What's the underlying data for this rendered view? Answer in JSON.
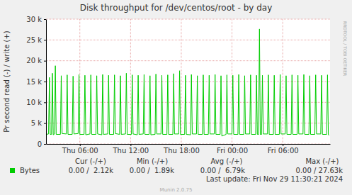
{
  "chart_data": {
    "type": "line",
    "title": "Disk throughput for /dev/centos/root - by day",
    "y_label": "Pr second read (-) / write (+)",
    "x": [
      2.0,
      2.3,
      2.4,
      2.5,
      2.65,
      2.75,
      2.85,
      3.0,
      3.1,
      3.2,
      3.7,
      3.8,
      3.9,
      4.4,
      4.5,
      4.6,
      5.1,
      5.2,
      5.3,
      5.8,
      5.9,
      6.0,
      6.5,
      6.6,
      6.7,
      7.2,
      7.3,
      7.4,
      7.9,
      8.0,
      8.1,
      8.6,
      8.7,
      8.8,
      9.3,
      9.4,
      9.5,
      10.0,
      10.1,
      10.2,
      10.7,
      10.8,
      10.9,
      11.4,
      11.5,
      11.6,
      12.1,
      12.2,
      12.3,
      12.8,
      12.9,
      13.0,
      13.5,
      13.6,
      13.7,
      14.2,
      14.3,
      14.4,
      14.9,
      15.0,
      15.1,
      15.6,
      15.7,
      15.8,
      16.3,
      16.4,
      16.5,
      17.0,
      17.1,
      17.2,
      17.7,
      17.8,
      17.9,
      18.4,
      18.5,
      18.6,
      19.1,
      19.2,
      19.3,
      19.8,
      19.9,
      20.0,
      20.5,
      20.6,
      20.7,
      21.2,
      21.3,
      21.4,
      21.9,
      22.0,
      22.1,
      22.6,
      22.7,
      22.8,
      23.3,
      23.4,
      23.5,
      24.0,
      24.1,
      24.2,
      24.7,
      24.8,
      24.9,
      25.4,
      25.5,
      25.6,
      26.1,
      26.2,
      26.3,
      26.8,
      26.9,
      27.0,
      27.15,
      27.25,
      27.35,
      27.5,
      27.6,
      27.7,
      28.2,
      28.3,
      28.4,
      28.9,
      29.0,
      29.1,
      29.6,
      29.7,
      29.8,
      30.3,
      30.4,
      30.5,
      31.0,
      31.1,
      31.2,
      31.7,
      31.8,
      31.9,
      32.4,
      32.5,
      32.6,
      33.1,
      33.2,
      33.3,
      33.8,
      33.9,
      34.0,
      34.5,
      34.6,
      34.7,
      35.2,
      35.3,
      35.4,
      35.5
    ],
    "series": [
      {
        "name": "Bytes",
        "color": "#00cc00",
        "values": [
          2300,
          2400,
          16000,
          2300,
          2300,
          17000,
          2200,
          2400,
          18800,
          2300,
          2300,
          16400,
          2500,
          2400,
          16600,
          2300,
          2300,
          16300,
          2400,
          2500,
          16700,
          2300,
          2300,
          16500,
          2200,
          2400,
          16600,
          2300,
          2300,
          16400,
          2400,
          2200,
          16700,
          2300,
          2400,
          16500,
          2300,
          2300,
          16600,
          2500,
          2300,
          16400,
          2300,
          2400,
          17000,
          2300,
          2300,
          16600,
          2400,
          2200,
          16500,
          2300,
          2400,
          16700,
          2300,
          2300,
          16400,
          2200,
          2300,
          16800,
          2400,
          2400,
          16500,
          2300,
          2300,
          16600,
          2300,
          2300,
          16900,
          2400,
          2400,
          17600,
          2300,
          2300,
          16500,
          2300,
          2200,
          16700,
          2400,
          2400,
          16400,
          2300,
          2300,
          16600,
          2300,
          2300,
          16500,
          2400,
          2400,
          16700,
          2300,
          2300,
          16400,
          1890,
          2300,
          16600,
          2400,
          2400,
          16500,
          2300,
          2300,
          16700,
          2300,
          2300,
          16400,
          2400,
          2400,
          16600,
          2300,
          2300,
          16500,
          2300,
          2300,
          27630,
          2300,
          2300,
          16500,
          2400,
          2400,
          16600,
          2300,
          2300,
          16500,
          2300,
          2300,
          16700,
          2400,
          2400,
          16400,
          2300,
          2300,
          16600,
          2300,
          2300,
          16500,
          2400,
          2400,
          16700,
          2300,
          2300,
          16400,
          2300,
          2300,
          16600,
          2400,
          2400,
          16500,
          2300,
          2300,
          16600,
          2200,
          2120
        ]
      }
    ],
    "xlim": [
      2.0,
      35.6
    ],
    "xticks": [
      {
        "value": 6,
        "label": "Thu 06:00"
      },
      {
        "value": 12,
        "label": "Thu 12:00"
      },
      {
        "value": 18,
        "label": "Thu 18:00"
      },
      {
        "value": 24,
        "label": "Fri 00:00"
      },
      {
        "value": 30,
        "label": "Fri 06:00"
      }
    ],
    "ylim": [
      0,
      30000
    ],
    "yticks": [
      0,
      {
        "value": 5000,
        "label": "5 k"
      },
      {
        "value": 10000,
        "label": "10 k"
      },
      {
        "value": 15000,
        "label": "15 k"
      },
      {
        "value": 20000,
        "label": "20 k"
      },
      {
        "value": 25000,
        "label": "25 k"
      },
      {
        "value": 30000,
        "label": "30 k"
      }
    ],
    "grid": true,
    "legend": "bottom",
    "stats": {
      "headers": [
        "Cur (-/+)",
        "Min (-/+)",
        "Avg (-/+)",
        "Max (-/+)"
      ],
      "values": [
        "0.00 /  2.12k",
        "0.00 /  1.89k",
        "0.00 /  6.79k",
        "0.00 / 27.63k"
      ]
    },
    "annotations": [
      "RRDTOOL / TOBI OETIKER",
      "Last update: Fri Nov 29 11:30:21 2024",
      "Munin 2.0.75"
    ]
  }
}
